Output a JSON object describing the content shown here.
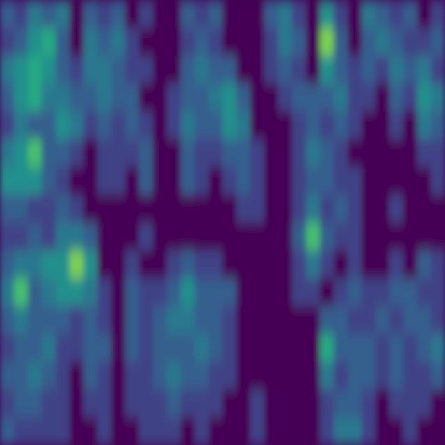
{
  "chart_data": {
    "type": "heatmap",
    "tick_labels": false,
    "zlim": [
      0,
      10
    ],
    "cells": [
      [
        3,
        2,
        4,
        3,
        4,
        0,
        3,
        2,
        3,
        0,
        2,
        0,
        0,
        3,
        2,
        3,
        0,
        0,
        0,
        3,
        4,
        2,
        0,
        5,
        2,
        0,
        4,
        3,
        2,
        3,
        0,
        2
      ],
      [
        2,
        3,
        5,
        6,
        3,
        0,
        4,
        3,
        4,
        2,
        0,
        0,
        0,
        2,
        3,
        2,
        0,
        0,
        0,
        2,
        4,
        3,
        0,
        8,
        3,
        0,
        3,
        4,
        3,
        2,
        2,
        3
      ],
      [
        4,
        5,
        6,
        5,
        3,
        2,
        4,
        4,
        3,
        2,
        2,
        0,
        0,
        3,
        4,
        3,
        3,
        0,
        0,
        2,
        3,
        2,
        0,
        5,
        3,
        2,
        3,
        2,
        4,
        3,
        4,
        2
      ],
      [
        3,
        5,
        6,
        4,
        4,
        3,
        3,
        4,
        3,
        3,
        0,
        0,
        2,
        3,
        3,
        4,
        5,
        3,
        0,
        0,
        2,
        3,
        3,
        3,
        4,
        2,
        2,
        0,
        3,
        2,
        5,
        4
      ],
      [
        2,
        4,
        3,
        3,
        5,
        4,
        2,
        3,
        2,
        3,
        2,
        0,
        2,
        4,
        3,
        3,
        5,
        4,
        0,
        0,
        0,
        2,
        3,
        2,
        3,
        2,
        0,
        0,
        2,
        0,
        4,
        3
      ],
      [
        4,
        5,
        7,
        3,
        3,
        2,
        0,
        2,
        2,
        2,
        3,
        0,
        0,
        3,
        2,
        2,
        3,
        3,
        2,
        0,
        0,
        2,
        4,
        3,
        2,
        0,
        0,
        0,
        0,
        0,
        2,
        2
      ],
      [
        5,
        5,
        5,
        3,
        2,
        0,
        0,
        2,
        2,
        0,
        3,
        0,
        0,
        3,
        2,
        0,
        2,
        3,
        2,
        0,
        0,
        2,
        3,
        3,
        2,
        2,
        0,
        0,
        0,
        0,
        0,
        2
      ],
      [
        3,
        3,
        2,
        2,
        3,
        2,
        0,
        0,
        0,
        0,
        0,
        0,
        0,
        0,
        0,
        0,
        0,
        2,
        2,
        0,
        0,
        2,
        4,
        2,
        3,
        2,
        0,
        0,
        2,
        0,
        0,
        0
      ],
      [
        2,
        2,
        3,
        2,
        4,
        4,
        3,
        0,
        0,
        0,
        2,
        0,
        0,
        0,
        0,
        0,
        0,
        0,
        0,
        0,
        0,
        3,
        7,
        3,
        2,
        2,
        0,
        0,
        0,
        0,
        0,
        0
      ],
      [
        3,
        4,
        4,
        5,
        5,
        8,
        5,
        0,
        0,
        2,
        0,
        0,
        2,
        3,
        2,
        2,
        0,
        0,
        0,
        0,
        0,
        2,
        4,
        2,
        0,
        2,
        0,
        0,
        2,
        0,
        3,
        2
      ],
      [
        4,
        7,
        3,
        4,
        5,
        5,
        4,
        2,
        0,
        3,
        2,
        2,
        3,
        5,
        3,
        3,
        3,
        0,
        0,
        0,
        0,
        2,
        2,
        0,
        2,
        3,
        2,
        2,
        3,
        3,
        2,
        2
      ],
      [
        3,
        4,
        3,
        3,
        3,
        2,
        3,
        2,
        0,
        3,
        2,
        3,
        4,
        4,
        3,
        3,
        2,
        0,
        0,
        0,
        0,
        0,
        0,
        3,
        3,
        2,
        2,
        3,
        2,
        3,
        3,
        2
      ],
      [
        2,
        3,
        3,
        4,
        2,
        2,
        3,
        3,
        0,
        3,
        2,
        3,
        3,
        3,
        4,
        3,
        2,
        0,
        0,
        0,
        0,
        0,
        0,
        6,
        3,
        3,
        3,
        2,
        3,
        2,
        3,
        4
      ],
      [
        3,
        3,
        4,
        3,
        2,
        0,
        3,
        2,
        0,
        2,
        2,
        3,
        4,
        3,
        3,
        2,
        2,
        0,
        0,
        0,
        0,
        0,
        0,
        4,
        2,
        3,
        3,
        2,
        3,
        2,
        2,
        3
      ],
      [
        2,
        3,
        3,
        2,
        2,
        0,
        2,
        2,
        0,
        2,
        2,
        2,
        3,
        2,
        2,
        2,
        0,
        0,
        2,
        0,
        0,
        0,
        0,
        2,
        3,
        3,
        2,
        0,
        2,
        2,
        2,
        0
      ],
      [
        3,
        2,
        2,
        2,
        2,
        0,
        0,
        2,
        0,
        0,
        2,
        2,
        2,
        0,
        2,
        0,
        0,
        0,
        2,
        0,
        0,
        0,
        0,
        2,
        4,
        4,
        2,
        0,
        0,
        2,
        0,
        0
      ]
    ]
  }
}
